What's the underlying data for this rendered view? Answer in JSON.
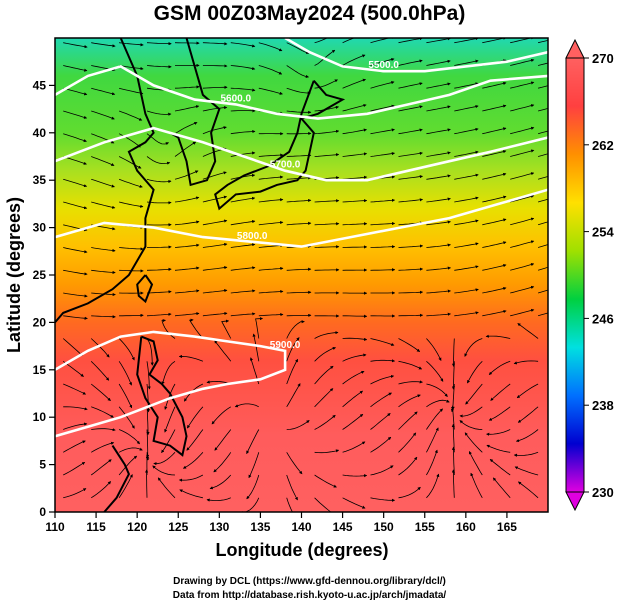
{
  "chart_data": {
    "type": "contour-streamline",
    "title": "GSM 00Z03May2024 (500.0hPa)",
    "xlabel": "Longitude (degrees)",
    "ylabel": "Latitude  (degrees)",
    "xlim": [
      110,
      170
    ],
    "ylim": [
      0,
      50
    ],
    "x_ticks": [
      110,
      115,
      120,
      125,
      130,
      135,
      140,
      145,
      150,
      155,
      160,
      165
    ],
    "y_ticks": [
      0,
      5,
      10,
      15,
      20,
      25,
      30,
      35,
      40,
      45
    ],
    "colorbar": {
      "min": 230,
      "max": 270,
      "tick_values": [
        230,
        238,
        246,
        254,
        262,
        270
      ],
      "colors": [
        "#e000e0",
        "#0000d0",
        "#0070ff",
        "#00e0e0",
        "#00d040",
        "#a0e000",
        "#ffe000",
        "#ff9000",
        "#ff4040",
        "#ff6060"
      ]
    },
    "field_gradient": [
      {
        "lat": 50,
        "color": "#20d8b0"
      },
      {
        "lat": 46,
        "color": "#40d840"
      },
      {
        "lat": 40,
        "color": "#60dc30"
      },
      {
        "lat": 36,
        "color": "#a8e020"
      },
      {
        "lat": 32,
        "color": "#e8e000"
      },
      {
        "lat": 28,
        "color": "#ffc000"
      },
      {
        "lat": 24,
        "color": "#ff9a00"
      },
      {
        "lat": 20,
        "color": "#ff6a20"
      },
      {
        "lat": 16,
        "color": "#ff5040"
      },
      {
        "lat": 8,
        "color": "#ff5c5c"
      },
      {
        "lat": 0,
        "color": "#ff6060"
      }
    ],
    "contours": [
      {
        "label": "5500.0",
        "points": [
          [
            138,
            50
          ],
          [
            141,
            48.5
          ],
          [
            145,
            47
          ],
          [
            150,
            46.5
          ],
          [
            155,
            46.5
          ],
          [
            160,
            47
          ],
          [
            165,
            47.5
          ],
          [
            170,
            48.5
          ]
        ]
      },
      {
        "label": "5600.0",
        "points": [
          [
            110,
            44
          ],
          [
            114,
            46
          ],
          [
            118,
            47
          ],
          [
            122,
            45
          ],
          [
            127,
            43.5
          ],
          [
            132,
            43
          ],
          [
            137,
            42
          ],
          [
            142,
            41.5
          ],
          [
            148,
            42
          ],
          [
            153,
            43
          ],
          [
            158,
            44
          ],
          [
            163,
            45.5
          ],
          [
            170,
            46
          ]
        ]
      },
      {
        "label": "5700.0",
        "points": [
          [
            110,
            37
          ],
          [
            116,
            39
          ],
          [
            122,
            40.5
          ],
          [
            128,
            39
          ],
          [
            133,
            37.5
          ],
          [
            138,
            36
          ],
          [
            143,
            35
          ],
          [
            148,
            35
          ],
          [
            153,
            36
          ],
          [
            158,
            37
          ],
          [
            163,
            38
          ],
          [
            170,
            39.5
          ]
        ]
      },
      {
        "label": "5800.0",
        "points": [
          [
            110,
            29
          ],
          [
            116,
            30.5
          ],
          [
            122,
            30
          ],
          [
            128,
            29
          ],
          [
            134,
            28.5
          ],
          [
            140,
            28
          ],
          [
            146,
            29
          ],
          [
            152,
            30
          ],
          [
            158,
            31
          ],
          [
            164,
            32.5
          ],
          [
            170,
            34
          ]
        ]
      },
      {
        "label": "5900.0",
        "points": [
          [
            110,
            15
          ],
          [
            114,
            17
          ],
          [
            118,
            18.5
          ],
          [
            122,
            19
          ],
          [
            127,
            18.5
          ],
          [
            131,
            18
          ],
          [
            135,
            17.5
          ],
          [
            138,
            17
          ],
          [
            138,
            15
          ],
          [
            135,
            14
          ],
          [
            131,
            13.5
          ],
          [
            128,
            13
          ],
          [
            124,
            12
          ],
          [
            121,
            11
          ],
          [
            118,
            10
          ],
          [
            114,
            9
          ],
          [
            110,
            8
          ]
        ]
      }
    ],
    "vortex_centers": [
      {
        "lon": 141,
        "lat": 46.5
      },
      {
        "lon": 123,
        "lat": 37.5
      }
    ]
  },
  "credits": {
    "line1": "Drawing by DCL (https://www.gfd-dennou.org/library/dcl/)",
    "line2": "Data from http://database.rish.kyoto-u.ac.jp/arch/jmadata/"
  }
}
